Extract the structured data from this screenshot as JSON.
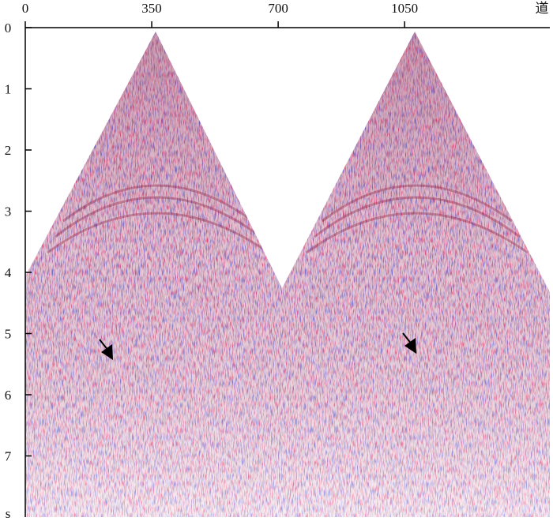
{
  "chart_data": {
    "type": "seismic",
    "x_label": "道",
    "y_label": "s",
    "xlim": [
      0,
      1452
    ],
    "xticks": [
      0,
      350,
      700,
      1050
    ],
    "ylim": [
      0,
      8
    ],
    "yticks": [
      0,
      1,
      2,
      3,
      4,
      5,
      6,
      7
    ]
  }
}
